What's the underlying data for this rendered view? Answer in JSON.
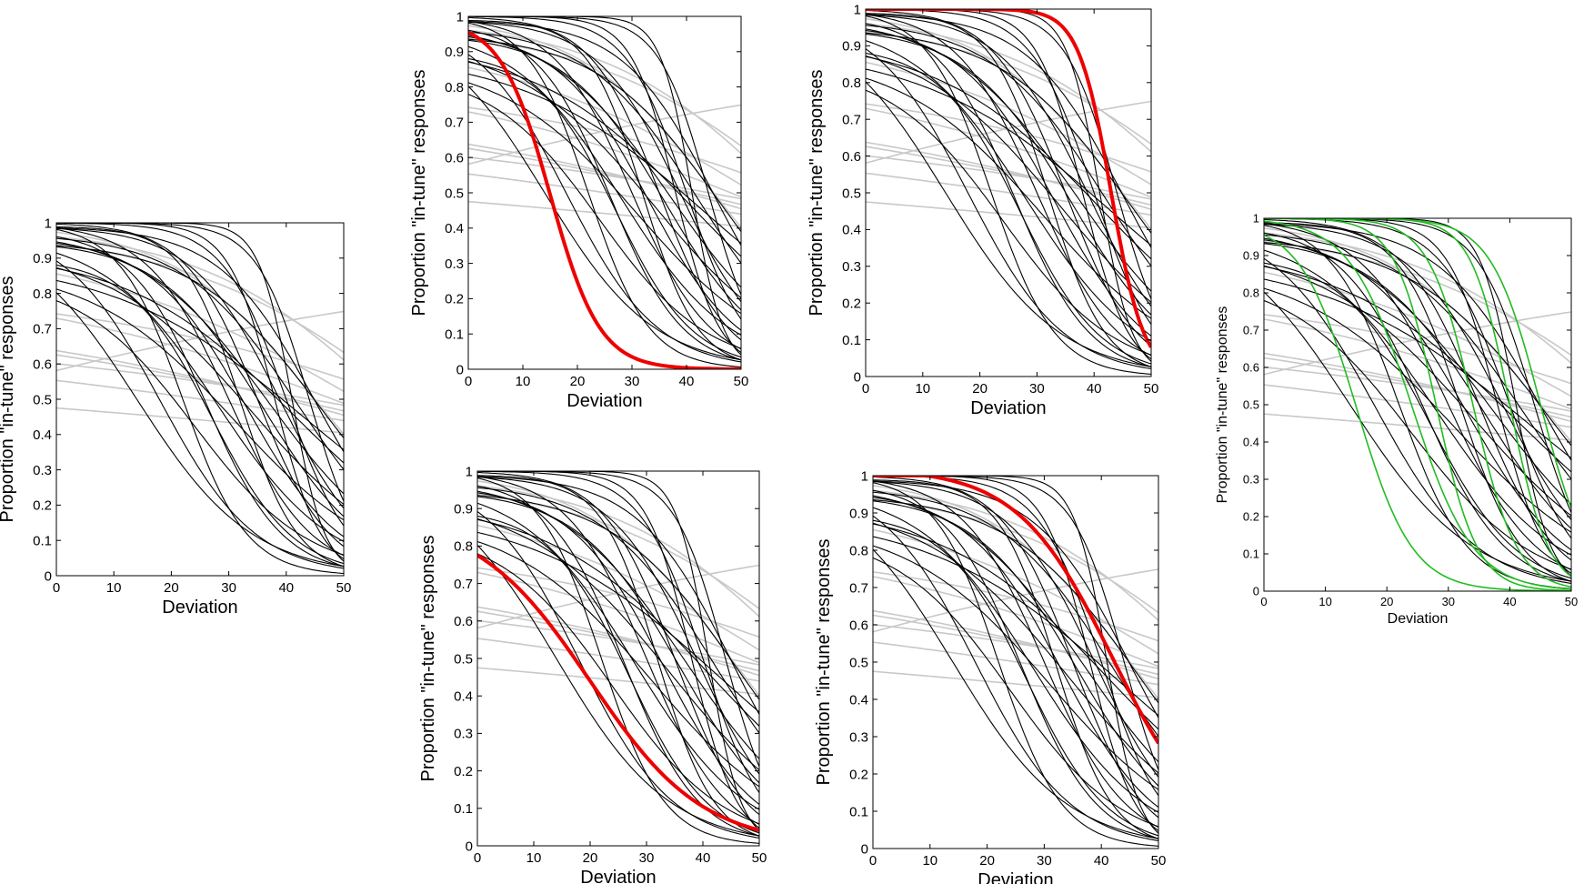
{
  "colors": {
    "background": "#ffffff",
    "black_curves": "#000000",
    "gray_curves": "#c8c8c8",
    "highlight_red": "#ee0000",
    "highlight_green": "#22bb22"
  },
  "chart_data": [
    {
      "type": "line",
      "id": "left",
      "xlabel": "Deviation",
      "ylabel": "Proportion \"in-tune\" responses",
      "xlim": [
        0,
        50
      ],
      "ylim": [
        0,
        1
      ],
      "xticks": [
        "0",
        "10",
        "20",
        "30",
        "40",
        "50"
      ],
      "yticks": [
        "0",
        "0.1",
        "0.2",
        "0.3",
        "0.4",
        "0.5",
        "0.6",
        "0.7",
        "0.8",
        "0.9",
        "1"
      ],
      "grid": false,
      "series_groups": [
        {
          "color": "black",
          "note": "fitted logistic psychometric functions",
          "curves": [
            [
              0.1,
              14,
              1.0
            ],
            [
              0.12,
              18,
              0.995
            ],
            [
              0.18,
              22,
              1.0
            ],
            [
              0.15,
              26,
              0.98
            ],
            [
              0.1,
              28,
              0.97
            ],
            [
              0.14,
              30,
              1.0
            ],
            [
              0.2,
              32,
              0.99
            ],
            [
              0.12,
              33,
              0.96
            ],
            [
              0.08,
              34,
              0.93
            ],
            [
              0.16,
              35,
              1.0
            ],
            [
              0.11,
              36,
              0.95
            ],
            [
              0.09,
              37,
              0.98
            ],
            [
              0.25,
              38,
              1.0
            ],
            [
              0.13,
              39,
              0.99
            ],
            [
              0.18,
              40,
              1.0
            ],
            [
              0.07,
              41,
              0.92
            ],
            [
              0.1,
              42,
              0.97
            ],
            [
              0.06,
              43,
              0.9
            ],
            [
              0.22,
              44,
              1.0
            ],
            [
              0.12,
              45,
              0.99
            ],
            [
              0.09,
              46,
              0.95
            ],
            [
              0.14,
              27,
              0.9
            ],
            [
              0.08,
              31,
              0.88
            ],
            [
              0.35,
              41,
              1.0
            ],
            [
              0.1,
              24,
              0.85
            ]
          ]
        },
        {
          "color": "gray",
          "curves": [
            [
              0.03,
              60,
              0.85
            ],
            [
              0.02,
              70,
              0.78
            ],
            [
              0.04,
              55,
              0.95
            ],
            [
              0.015,
              80,
              0.72
            ],
            [
              0.05,
              62,
              0.98
            ],
            [
              0.02,
              90,
              0.7
            ],
            [
              0.06,
              58,
              0.99
            ],
            [
              0.03,
              75,
              0.82
            ],
            [
              0.08,
              45,
              1.0
            ],
            [
              0.01,
              100,
              0.65
            ],
            [
              -0.02,
              -30,
              0.9
            ],
            [
              0.025,
              66,
              0.76
            ]
          ]
        }
      ]
    },
    {
      "type": "line",
      "id": "top-middle",
      "xlabel": "Deviation",
      "ylabel": "Proportion \"in-tune\" responses",
      "xlim": [
        0,
        50
      ],
      "ylim": [
        0,
        1
      ],
      "xticks": [
        "0",
        "10",
        "20",
        "30",
        "40",
        "50"
      ],
      "yticks": [
        "0",
        "0.1",
        "0.2",
        "0.3",
        "0.4",
        "0.5",
        "0.6",
        "0.7",
        "0.8",
        "0.9",
        "1"
      ],
      "grid": false,
      "highlight": {
        "color": "red",
        "curve": [
          0.22,
          15,
          0.99
        ]
      }
    },
    {
      "type": "line",
      "id": "top-right",
      "xlabel": "Deviation",
      "ylabel": "Proportion \"in-tune\" responses",
      "xlim": [
        0,
        50
      ],
      "ylim": [
        0,
        1
      ],
      "xticks": [
        "0",
        "10",
        "20",
        "30",
        "40",
        "50"
      ],
      "yticks": [
        "0",
        "0.1",
        "0.2",
        "0.3",
        "0.4",
        "0.5",
        "0.6",
        "0.7",
        "0.8",
        "0.9",
        "1"
      ],
      "grid": false,
      "highlight": {
        "color": "red",
        "curve": [
          0.35,
          43,
          1.0
        ]
      }
    },
    {
      "type": "line",
      "id": "bottom-middle",
      "xlabel": "Deviation",
      "ylabel": "Proportion \"in-tune\" responses",
      "xlim": [
        0,
        50
      ],
      "ylim": [
        0,
        1
      ],
      "xticks": [
        "0",
        "10",
        "20",
        "30",
        "40",
        "50"
      ],
      "yticks": [
        "0",
        "0.1",
        "0.2",
        "0.3",
        "0.4",
        "0.5",
        "0.6",
        "0.7",
        "0.8",
        "0.9",
        "1"
      ],
      "grid": false,
      "highlight": {
        "color": "red",
        "curve": [
          0.1,
          20,
          0.88
        ]
      }
    },
    {
      "type": "line",
      "id": "bottom-right",
      "xlabel": "Deviation",
      "ylabel": "Proportion \"in-tune\" responses",
      "xlim": [
        0,
        50
      ],
      "ylim": [
        0,
        1
      ],
      "xticks": [
        "0",
        "10",
        "20",
        "30",
        "40",
        "50"
      ],
      "yticks": [
        "0",
        "0.1",
        "0.2",
        "0.3",
        "0.4",
        "0.5",
        "0.6",
        "0.7",
        "0.8",
        "0.9",
        "1"
      ],
      "grid": false,
      "highlight": {
        "color": "red",
        "curve": [
          0.12,
          42,
          1.02
        ]
      }
    },
    {
      "type": "line",
      "id": "far-right",
      "xlabel": "Deviation",
      "ylabel": "Proportion \"in-tune\" responses",
      "xlim": [
        0,
        50
      ],
      "ylim": [
        0,
        1
      ],
      "xticks": [
        "0",
        "10",
        "20",
        "30",
        "40",
        "50"
      ],
      "yticks": [
        "0",
        "0.1",
        "0.2",
        "0.3",
        "0.4",
        "0.5",
        "0.6",
        "0.7",
        "0.8",
        "0.9",
        "1"
      ],
      "grid": false,
      "highlight_group": {
        "color": "green",
        "curves": [
          [
            0.22,
            15,
            0.99
          ],
          [
            0.2,
            24,
            1.0
          ],
          [
            0.3,
            28,
            1.0
          ],
          [
            0.28,
            34,
            1.0
          ],
          [
            0.32,
            40,
            1.0
          ],
          [
            0.25,
            45,
            1.0
          ]
        ]
      }
    }
  ]
}
